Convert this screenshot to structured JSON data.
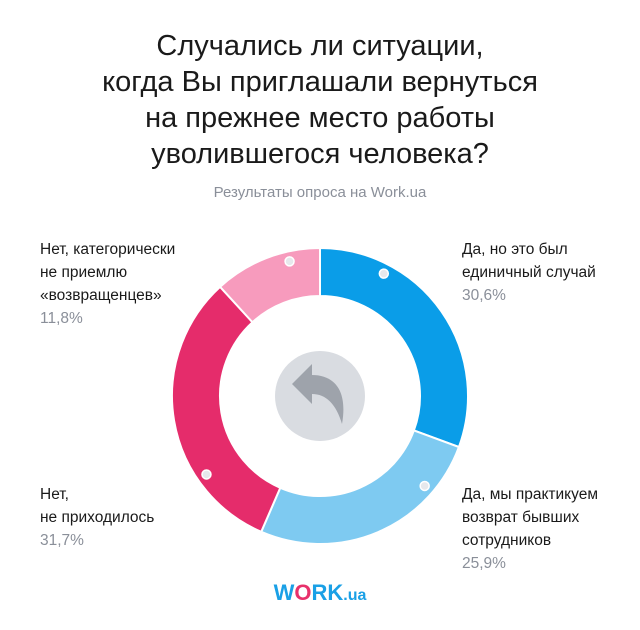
{
  "title_lines": [
    "Случались ли ситуации,",
    "когда Вы приглашали вернуться",
    "на прежнее место работы",
    "уволившегося человека?"
  ],
  "subtitle": "Результаты опроса на Work.ua",
  "chart_data": {
    "type": "pie",
    "style": "donut",
    "start_angle_deg": 0,
    "direction": "clockwise",
    "series": [
      {
        "label_lines": [
          "Да, но это был",
          "единичный случай"
        ],
        "percent_label": "30,6%",
        "value": 30.6,
        "color": "#0a9de8",
        "label_side": "right"
      },
      {
        "label_lines": [
          "Да, мы практикуем",
          "возврат бывших",
          "сотрудников"
        ],
        "percent_label": "25,9%",
        "value": 25.9,
        "color": "#7ecaf1",
        "label_side": "right"
      },
      {
        "label_lines": [
          "Нет,",
          "не приходилось"
        ],
        "percent_label": "31,7%",
        "value": 31.7,
        "color": "#e52c6b",
        "label_side": "left"
      },
      {
        "label_lines": [
          "Нет, категорически",
          "не приемлю",
          "«возвращенцев»"
        ],
        "percent_label": "11,8%",
        "value": 11.8,
        "color": "#f79bbd",
        "label_side": "left"
      }
    ],
    "center_icon": "undo-arrow-icon"
  },
  "logo": {
    "w": "W",
    "o": "O",
    "rk": "RK",
    "ua": ".ua"
  }
}
